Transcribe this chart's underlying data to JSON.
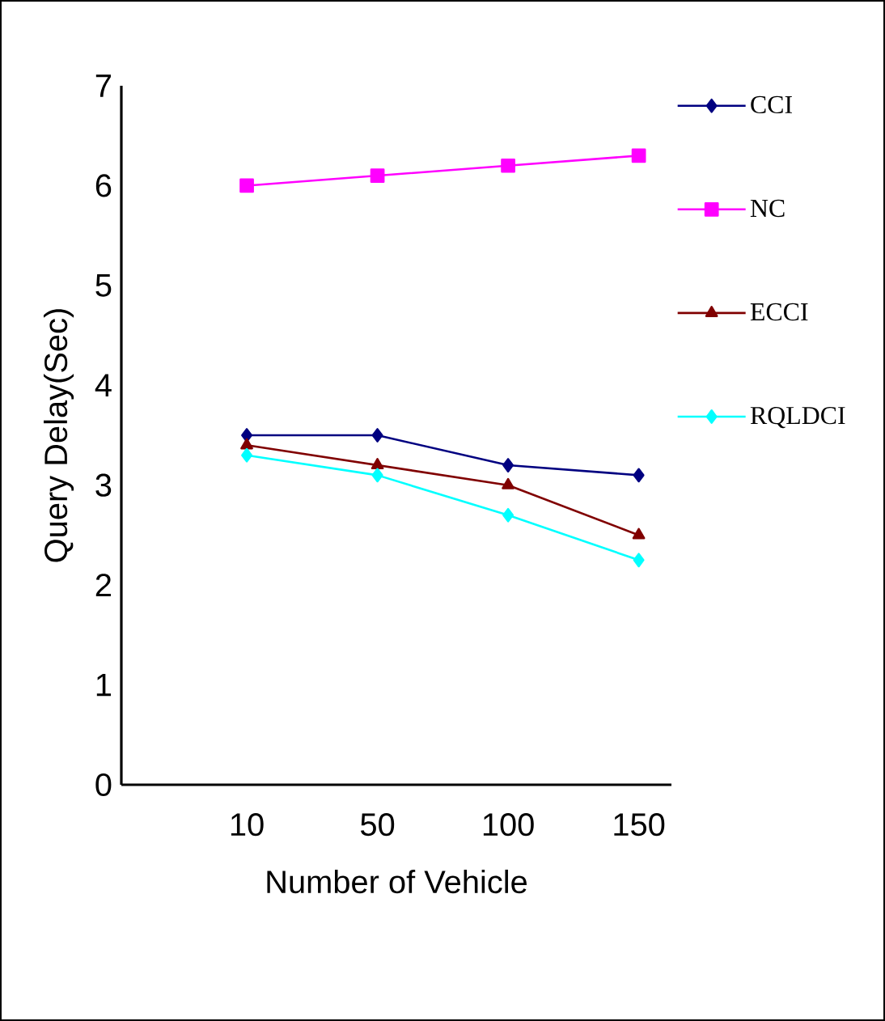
{
  "chart_data": {
    "type": "line",
    "xlabel": "Number of Vehicle",
    "ylabel": "Query Delay(Sec)",
    "categories": [
      "10",
      "50",
      "100",
      "150"
    ],
    "ylim": [
      0,
      7
    ],
    "yticks": [
      0,
      1,
      2,
      3,
      4,
      5,
      6,
      7
    ],
    "legend": "right",
    "series": [
      {
        "name": "CCI",
        "color": "#000080",
        "marker": "diamond",
        "values": [
          3.5,
          3.5,
          3.2,
          3.1
        ]
      },
      {
        "name": "NC",
        "color": "#ff00ff",
        "marker": "square",
        "values": [
          6.0,
          6.1,
          6.2,
          6.3
        ]
      },
      {
        "name": "ECCI",
        "color": "#800000",
        "marker": "triangle",
        "values": [
          3.4,
          3.2,
          3.0,
          2.5
        ]
      },
      {
        "name": "RQLDCI",
        "color": "#00ffff",
        "marker": "diamond",
        "values": [
          3.3,
          3.1,
          2.7,
          2.25
        ]
      }
    ]
  }
}
